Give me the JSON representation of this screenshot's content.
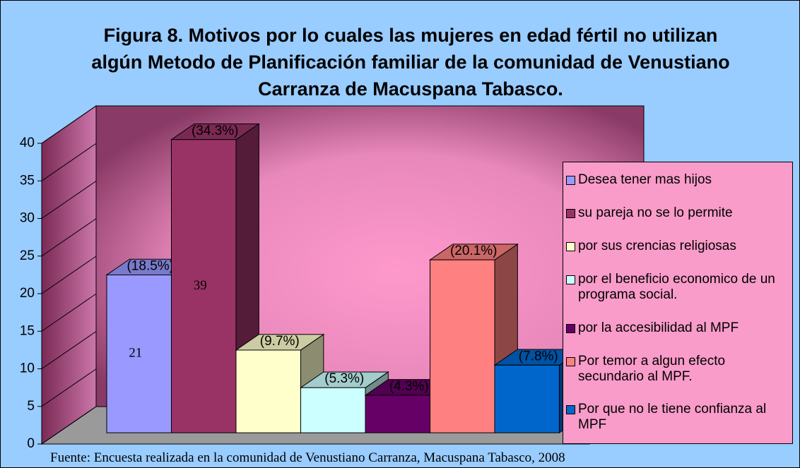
{
  "chart_data": {
    "type": "bar3d",
    "title": "Figura 8. Motivos por lo cuales las mujeres en edad fértil no utilizan algún Metodo de Planificación familiar de la comunidad de Venustiano Carranza de Macuspana Tabasco.",
    "source": "Fuente: Encuesta realizada en la comunidad de Venustiano Carranza, Macuspana Tabasco, 2008",
    "ylim": [
      0,
      40
    ],
    "yticks": [
      0,
      5,
      10,
      15,
      20,
      25,
      30,
      35,
      40
    ],
    "grid": true,
    "legend": "right",
    "series": [
      {
        "name": "Desea tener mas hijos",
        "color": "#9999ff",
        "values": [
          21
        ],
        "percent_label": "(18.5%)",
        "data_labels": true
      },
      {
        "name": "su pareja no se lo permite",
        "color": "#993366",
        "values": [
          39
        ],
        "percent_label": "(34.3%)",
        "data_labels": true
      },
      {
        "name": "por sus crencias religiosas",
        "color": "#ffffcc",
        "values": [
          11
        ],
        "percent_label": "(9.7%)",
        "data_labels": false
      },
      {
        "name": "por el beneficio economico de un programa social.",
        "color": "#ccffff",
        "values": [
          6
        ],
        "percent_label": "(5.3%)",
        "data_labels": false
      },
      {
        "name": "por la accesibilidad al MPF",
        "color": "#660066",
        "values": [
          5
        ],
        "percent_label": "(4.3%)",
        "data_labels": false
      },
      {
        "name": "Por temor a algun efecto secundario al MPF.",
        "color": "#ff8080",
        "values": [
          23
        ],
        "percent_label": "(20.1%)",
        "data_labels": false
      },
      {
        "name": "Por que no le tiene confianza al MPF",
        "color": "#0066cc",
        "values": [
          9
        ],
        "percent_label": "(7.8%)",
        "data_labels": false
      }
    ]
  }
}
